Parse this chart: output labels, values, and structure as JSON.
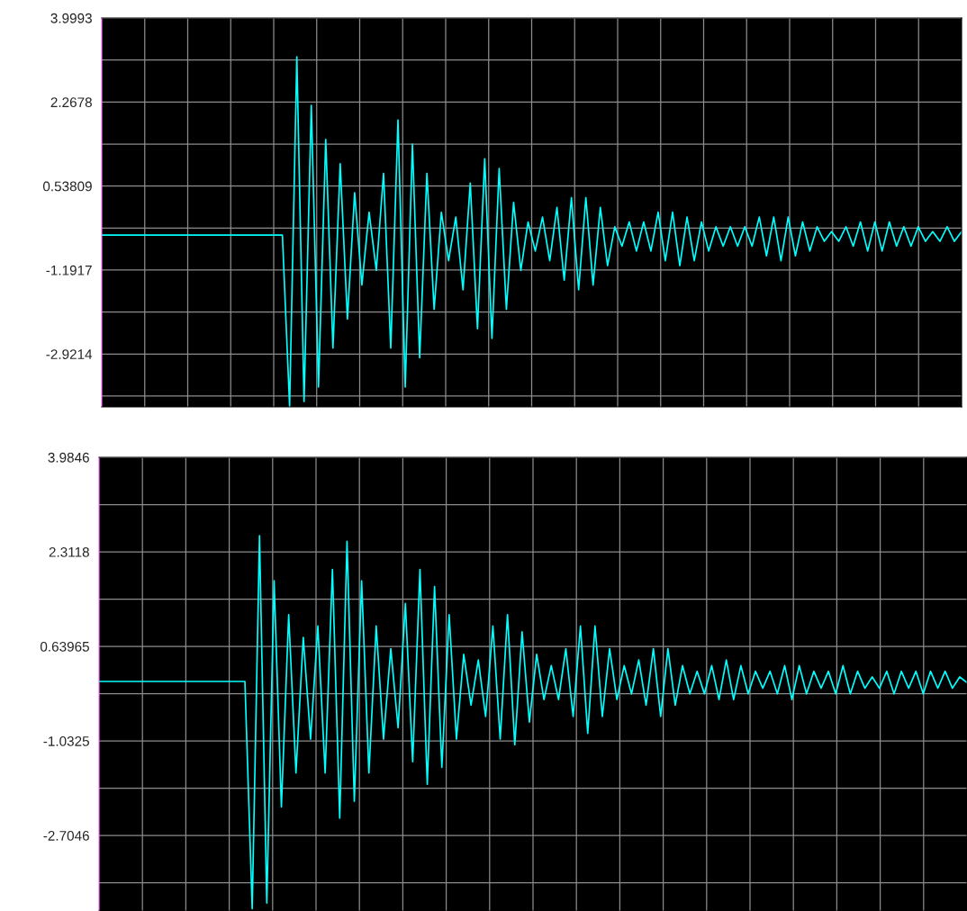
{
  "chart_data": [
    {
      "type": "line",
      "relative": false,
      "categories": [
        null,
        null,
        null,
        null,
        null,
        null,
        null,
        null,
        null,
        null,
        null,
        null,
        null,
        null,
        null,
        null,
        null,
        null,
        null,
        null,
        null,
        null,
        null,
        null,
        null,
        null,
        null,
        null,
        null,
        null,
        null,
        null,
        null,
        null,
        null,
        null,
        null,
        null,
        null,
        null,
        null,
        null,
        null,
        null,
        null,
        null,
        null,
        null,
        null,
        null,
        null,
        null,
        null,
        null,
        null,
        null,
        null,
        null,
        null,
        null,
        null,
        null,
        null,
        null,
        null,
        null,
        null,
        null,
        null,
        null,
        null,
        null,
        null,
        null,
        null,
        null,
        null,
        null,
        null,
        null,
        null,
        null,
        null,
        null,
        null,
        null,
        null,
        null,
        null,
        null,
        null,
        null,
        null,
        null,
        null,
        null,
        null,
        null,
        null,
        null,
        null,
        null,
        null,
        null,
        null,
        null,
        null,
        null,
        null,
        null,
        null,
        null,
        null,
        null,
        null,
        null,
        null,
        null,
        null,
        null
      ],
      "series": [
        {
          "color": "#00ffff",
          "values": [
            -0.47,
            -0.47,
            -0.47,
            -0.47,
            -0.47,
            -0.47,
            -0.47,
            -0.47,
            -0.47,
            -0.47,
            -0.47,
            -0.47,
            -0.47,
            -0.47,
            -0.47,
            -0.47,
            -0.47,
            -0.47,
            -0.47,
            -0.47,
            -0.47,
            -0.47,
            -0.47,
            -0.47,
            -0.47,
            -0.47,
            -4.0,
            3.2,
            -3.9,
            2.2,
            -3.6,
            1.5,
            -2.8,
            1.0,
            -2.2,
            0.4,
            -1.5,
            0.0,
            -1.2,
            0.8,
            -2.8,
            1.9,
            -3.6,
            1.4,
            -3.0,
            0.8,
            -2.0,
            0.0,
            -1.0,
            -0.1,
            -1.6,
            0.6,
            -2.4,
            1.1,
            -2.6,
            0.9,
            -2.0,
            0.2,
            -1.2,
            -0.2,
            -0.8,
            -0.1,
            -1.0,
            0.1,
            -1.4,
            0.3,
            -1.6,
            0.3,
            -1.5,
            0.1,
            -1.1,
            -0.3,
            -0.7,
            -0.2,
            -0.8,
            -0.2,
            -0.8,
            0.0,
            -1.0,
            0.0,
            -1.1,
            -0.1,
            -1.0,
            -0.2,
            -0.8,
            -0.3,
            -0.7,
            -0.3,
            -0.7,
            -0.3,
            -0.7,
            -0.1,
            -0.9,
            -0.1,
            -1.0,
            -0.1,
            -0.9,
            -0.2,
            -0.8,
            -0.3,
            -0.6,
            -0.4,
            -0.6,
            -0.3,
            -0.7,
            -0.2,
            -0.8,
            -0.2,
            -0.8,
            -0.2,
            -0.7,
            -0.3,
            -0.7,
            -0.3,
            -0.6,
            -0.4,
            -0.6,
            -0.3,
            -0.6,
            -0.4
          ]
        }
      ],
      "ylim": [
        -4.01,
        3.9993
      ],
      "yticks": [
        3.9993,
        {
          "value": 3.1336,
          "label": null
        },
        2.2678,
        {
          "value": 1.4029,
          "label": null
        },
        0.53809,
        {
          "value": -0.3268,
          "label": null
        },
        -1.1917,
        {
          "value": -2.0566,
          "label": null
        },
        -2.9214,
        {
          "value": -3.786,
          "label": null
        }
      ],
      "grid": true,
      "tick_labels": "y",
      "marker": "none",
      "line_style": "solid"
    },
    {
      "type": "line",
      "relative": false,
      "categories": [
        null,
        null,
        null,
        null,
        null,
        null,
        null,
        null,
        null,
        null,
        null,
        null,
        null,
        null,
        null,
        null,
        null,
        null,
        null,
        null,
        null,
        null,
        null,
        null,
        null,
        null,
        null,
        null,
        null,
        null,
        null,
        null,
        null,
        null,
        null,
        null,
        null,
        null,
        null,
        null,
        null,
        null,
        null,
        null,
        null,
        null,
        null,
        null,
        null,
        null,
        null,
        null,
        null,
        null,
        null,
        null,
        null,
        null,
        null,
        null,
        null,
        null,
        null,
        null,
        null,
        null,
        null,
        null,
        null,
        null,
        null,
        null,
        null,
        null,
        null,
        null,
        null,
        null,
        null,
        null,
        null,
        null,
        null,
        null,
        null,
        null,
        null,
        null,
        null,
        null,
        null,
        null,
        null,
        null,
        null,
        null,
        null,
        null,
        null,
        null,
        null,
        null,
        null,
        null,
        null,
        null,
        null,
        null,
        null,
        null,
        null,
        null,
        null,
        null,
        null,
        null,
        null,
        null,
        null,
        null
      ],
      "series": [
        {
          "color": "#00ffff",
          "values": [
            0.02,
            0.02,
            0.02,
            0.02,
            0.02,
            0.02,
            0.02,
            0.02,
            0.02,
            0.02,
            0.02,
            0.02,
            0.02,
            0.02,
            0.02,
            0.02,
            0.02,
            0.02,
            0.02,
            0.02,
            0.02,
            -4.0,
            2.6,
            -3.9,
            1.8,
            -2.2,
            1.2,
            -1.6,
            0.8,
            -1.0,
            1.0,
            -1.6,
            2.0,
            -2.4,
            2.5,
            -2.1,
            1.8,
            -1.6,
            1.0,
            -1.0,
            0.6,
            -0.8,
            1.4,
            -1.4,
            2.0,
            -1.8,
            1.7,
            -1.5,
            1.2,
            -1.0,
            0.5,
            -0.4,
            0.4,
            -0.6,
            1.0,
            -1.0,
            1.2,
            -1.1,
            0.9,
            -0.7,
            0.5,
            -0.3,
            0.3,
            -0.3,
            0.6,
            -0.6,
            1.0,
            -0.9,
            1.0,
            -0.6,
            0.6,
            -0.3,
            0.3,
            -0.2,
            0.4,
            -0.4,
            0.6,
            -0.6,
            0.6,
            -0.4,
            0.3,
            -0.2,
            0.2,
            -0.2,
            0.3,
            -0.3,
            0.4,
            -0.3,
            0.3,
            -0.2,
            0.2,
            -0.1,
            0.2,
            -0.2,
            0.3,
            -0.3,
            0.3,
            -0.2,
            0.2,
            -0.1,
            0.2,
            -0.2,
            0.3,
            -0.2,
            0.2,
            -0.1,
            0.1,
            -0.1,
            0.2,
            -0.2,
            0.2,
            -0.1,
            0.2,
            -0.2,
            0.2,
            -0.1,
            0.2,
            -0.1,
            0.1,
            0.0
          ]
        }
      ],
      "ylim": [
        -4.04,
        3.9846
      ],
      "yticks": [
        3.9846,
        {
          "value": 3.1482,
          "label": null
        },
        2.3118,
        {
          "value": 1.4757,
          "label": null
        },
        0.63965,
        {
          "value": -0.1964,
          "label": null
        },
        -1.0325,
        {
          "value": -1.8686,
          "label": null
        },
        -2.7046,
        {
          "value": -3.5407,
          "label": null
        }
      ],
      "grid": true,
      "tick_labels": "y",
      "marker": "none",
      "line_style": "solid"
    }
  ]
}
